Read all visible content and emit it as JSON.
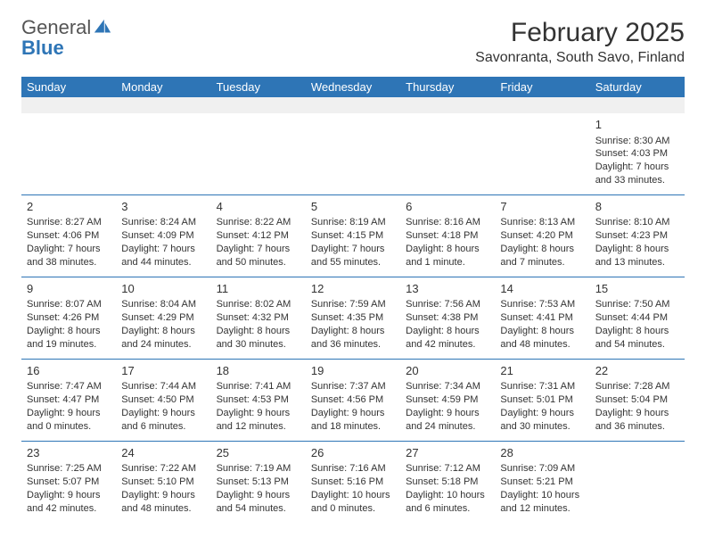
{
  "logo": {
    "text_gray": "General",
    "text_blue": "Blue"
  },
  "title": "February 2025",
  "location": "Savonranta, South Savo, Finland",
  "weekday_header_bg": "#2e75b6",
  "weekday_header_fg": "#ffffff",
  "rule_color": "#2e75b6",
  "weekdays": [
    "Sunday",
    "Monday",
    "Tuesday",
    "Wednesday",
    "Thursday",
    "Friday",
    "Saturday"
  ],
  "weeks": [
    [
      {
        "n": "",
        "sr": "",
        "ss": "",
        "d1": "",
        "d2": ""
      },
      {
        "n": "",
        "sr": "",
        "ss": "",
        "d1": "",
        "d2": ""
      },
      {
        "n": "",
        "sr": "",
        "ss": "",
        "d1": "",
        "d2": ""
      },
      {
        "n": "",
        "sr": "",
        "ss": "",
        "d1": "",
        "d2": ""
      },
      {
        "n": "",
        "sr": "",
        "ss": "",
        "d1": "",
        "d2": ""
      },
      {
        "n": "",
        "sr": "",
        "ss": "",
        "d1": "",
        "d2": ""
      },
      {
        "n": "1",
        "sr": "Sunrise: 8:30 AM",
        "ss": "Sunset: 4:03 PM",
        "d1": "Daylight: 7 hours",
        "d2": "and 33 minutes."
      }
    ],
    [
      {
        "n": "2",
        "sr": "Sunrise: 8:27 AM",
        "ss": "Sunset: 4:06 PM",
        "d1": "Daylight: 7 hours",
        "d2": "and 38 minutes."
      },
      {
        "n": "3",
        "sr": "Sunrise: 8:24 AM",
        "ss": "Sunset: 4:09 PM",
        "d1": "Daylight: 7 hours",
        "d2": "and 44 minutes."
      },
      {
        "n": "4",
        "sr": "Sunrise: 8:22 AM",
        "ss": "Sunset: 4:12 PM",
        "d1": "Daylight: 7 hours",
        "d2": "and 50 minutes."
      },
      {
        "n": "5",
        "sr": "Sunrise: 8:19 AM",
        "ss": "Sunset: 4:15 PM",
        "d1": "Daylight: 7 hours",
        "d2": "and 55 minutes."
      },
      {
        "n": "6",
        "sr": "Sunrise: 8:16 AM",
        "ss": "Sunset: 4:18 PM",
        "d1": "Daylight: 8 hours",
        "d2": "and 1 minute."
      },
      {
        "n": "7",
        "sr": "Sunrise: 8:13 AM",
        "ss": "Sunset: 4:20 PM",
        "d1": "Daylight: 8 hours",
        "d2": "and 7 minutes."
      },
      {
        "n": "8",
        "sr": "Sunrise: 8:10 AM",
        "ss": "Sunset: 4:23 PM",
        "d1": "Daylight: 8 hours",
        "d2": "and 13 minutes."
      }
    ],
    [
      {
        "n": "9",
        "sr": "Sunrise: 8:07 AM",
        "ss": "Sunset: 4:26 PM",
        "d1": "Daylight: 8 hours",
        "d2": "and 19 minutes."
      },
      {
        "n": "10",
        "sr": "Sunrise: 8:04 AM",
        "ss": "Sunset: 4:29 PM",
        "d1": "Daylight: 8 hours",
        "d2": "and 24 minutes."
      },
      {
        "n": "11",
        "sr": "Sunrise: 8:02 AM",
        "ss": "Sunset: 4:32 PM",
        "d1": "Daylight: 8 hours",
        "d2": "and 30 minutes."
      },
      {
        "n": "12",
        "sr": "Sunrise: 7:59 AM",
        "ss": "Sunset: 4:35 PM",
        "d1": "Daylight: 8 hours",
        "d2": "and 36 minutes."
      },
      {
        "n": "13",
        "sr": "Sunrise: 7:56 AM",
        "ss": "Sunset: 4:38 PM",
        "d1": "Daylight: 8 hours",
        "d2": "and 42 minutes."
      },
      {
        "n": "14",
        "sr": "Sunrise: 7:53 AM",
        "ss": "Sunset: 4:41 PM",
        "d1": "Daylight: 8 hours",
        "d2": "and 48 minutes."
      },
      {
        "n": "15",
        "sr": "Sunrise: 7:50 AM",
        "ss": "Sunset: 4:44 PM",
        "d1": "Daylight: 8 hours",
        "d2": "and 54 minutes."
      }
    ],
    [
      {
        "n": "16",
        "sr": "Sunrise: 7:47 AM",
        "ss": "Sunset: 4:47 PM",
        "d1": "Daylight: 9 hours",
        "d2": "and 0 minutes."
      },
      {
        "n": "17",
        "sr": "Sunrise: 7:44 AM",
        "ss": "Sunset: 4:50 PM",
        "d1": "Daylight: 9 hours",
        "d2": "and 6 minutes."
      },
      {
        "n": "18",
        "sr": "Sunrise: 7:41 AM",
        "ss": "Sunset: 4:53 PM",
        "d1": "Daylight: 9 hours",
        "d2": "and 12 minutes."
      },
      {
        "n": "19",
        "sr": "Sunrise: 7:37 AM",
        "ss": "Sunset: 4:56 PM",
        "d1": "Daylight: 9 hours",
        "d2": "and 18 minutes."
      },
      {
        "n": "20",
        "sr": "Sunrise: 7:34 AM",
        "ss": "Sunset: 4:59 PM",
        "d1": "Daylight: 9 hours",
        "d2": "and 24 minutes."
      },
      {
        "n": "21",
        "sr": "Sunrise: 7:31 AM",
        "ss": "Sunset: 5:01 PM",
        "d1": "Daylight: 9 hours",
        "d2": "and 30 minutes."
      },
      {
        "n": "22",
        "sr": "Sunrise: 7:28 AM",
        "ss": "Sunset: 5:04 PM",
        "d1": "Daylight: 9 hours",
        "d2": "and 36 minutes."
      }
    ],
    [
      {
        "n": "23",
        "sr": "Sunrise: 7:25 AM",
        "ss": "Sunset: 5:07 PM",
        "d1": "Daylight: 9 hours",
        "d2": "and 42 minutes."
      },
      {
        "n": "24",
        "sr": "Sunrise: 7:22 AM",
        "ss": "Sunset: 5:10 PM",
        "d1": "Daylight: 9 hours",
        "d2": "and 48 minutes."
      },
      {
        "n": "25",
        "sr": "Sunrise: 7:19 AM",
        "ss": "Sunset: 5:13 PM",
        "d1": "Daylight: 9 hours",
        "d2": "and 54 minutes."
      },
      {
        "n": "26",
        "sr": "Sunrise: 7:16 AM",
        "ss": "Sunset: 5:16 PM",
        "d1": "Daylight: 10 hours",
        "d2": "and 0 minutes."
      },
      {
        "n": "27",
        "sr": "Sunrise: 7:12 AM",
        "ss": "Sunset: 5:18 PM",
        "d1": "Daylight: 10 hours",
        "d2": "and 6 minutes."
      },
      {
        "n": "28",
        "sr": "Sunrise: 7:09 AM",
        "ss": "Sunset: 5:21 PM",
        "d1": "Daylight: 10 hours",
        "d2": "and 12 minutes."
      },
      {
        "n": "",
        "sr": "",
        "ss": "",
        "d1": "",
        "d2": ""
      }
    ]
  ]
}
